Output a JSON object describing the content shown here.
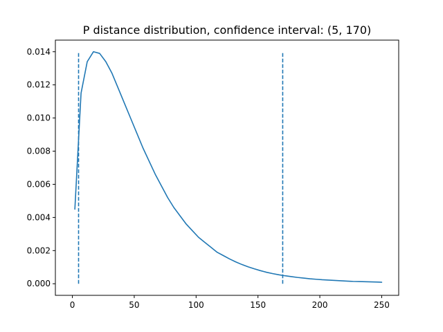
{
  "chart_data": {
    "type": "line",
    "title": "P distance distribution, confidence interval:  (5, 170)",
    "xlabel": "",
    "ylabel": "",
    "xlim": [
      -13.75,
      263.75
    ],
    "ylim": [
      -0.0007,
      0.0147
    ],
    "x_ticks": [
      0,
      50,
      100,
      150,
      200,
      250
    ],
    "y_ticks": [
      0.0,
      0.002,
      0.004,
      0.006,
      0.008,
      0.01,
      0.012,
      0.014
    ],
    "y_tick_labels": [
      "0.000",
      "0.002",
      "0.004",
      "0.006",
      "0.008",
      "0.010",
      "0.012",
      "0.014"
    ],
    "grid": false,
    "series": [
      {
        "color": "#1f77b4",
        "x": [
          2,
          7,
          12,
          17,
          22,
          27,
          32,
          37,
          42,
          47,
          52,
          57,
          62,
          67,
          72,
          77,
          82,
          87,
          92,
          97,
          102,
          107,
          112,
          117,
          122,
          127,
          132,
          137,
          142,
          147,
          152,
          157,
          162,
          167,
          172,
          177,
          182,
          187,
          192,
          197,
          202,
          207,
          212,
          217,
          222,
          227,
          232,
          237,
          242,
          247,
          250
        ],
        "y": [
          0.0045,
          0.0115,
          0.0134,
          0.014,
          0.0139,
          0.0134,
          0.0127,
          0.0118,
          0.0109,
          0.01,
          0.0091,
          0.0082,
          0.0074,
          0.0066,
          0.0059,
          0.0052,
          0.0046,
          0.0041,
          0.0036,
          0.0032,
          0.0028,
          0.0025,
          0.0022,
          0.0019,
          0.0017,
          0.0015,
          0.00132,
          0.00116,
          0.00102,
          0.0009,
          0.00079,
          0.00069,
          0.00061,
          0.00054,
          0.00048,
          0.00043,
          0.00038,
          0.00034,
          0.0003,
          0.00027,
          0.00024,
          0.00022,
          0.0002,
          0.00018,
          0.00016,
          0.00014,
          0.00013,
          0.00012,
          0.00011,
          0.0001,
          9e-05
        ]
      }
    ],
    "vlines": [
      {
        "x": 5,
        "ymin": 0.0,
        "ymax": 0.014,
        "style": "dashed",
        "color": "#1f77b4"
      },
      {
        "x": 170,
        "ymin": 0.0,
        "ymax": 0.014,
        "style": "dashed",
        "color": "#1f77b4"
      }
    ]
  }
}
